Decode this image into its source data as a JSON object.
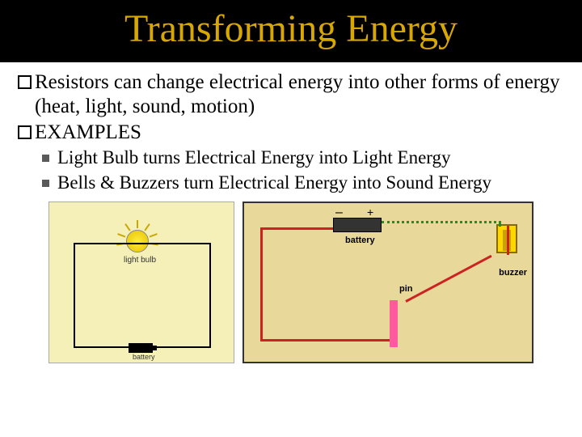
{
  "title": "Transforming Energy",
  "bullets": [
    "Resistors can change electrical energy into other forms of energy (heat, light, sound, motion)",
    "EXAMPLES"
  ],
  "subBullets": [
    "Light Bulb turns Electrical Energy into Light Energy",
    "Bells & Buzzers turn Electrical Energy into Sound Energy"
  ],
  "leftDiagram": {
    "bulbLabel": "light bulb",
    "batteryLabel": "battery",
    "background": "#f5f0b8",
    "bulbColor": "#ffeb3b"
  },
  "rightDiagram": {
    "batteryLabel": "battery",
    "plusLabel": "+",
    "minusLabel": "–",
    "pinLabel": "pin",
    "buzzerLabel": "buzzer",
    "background": "#e8d89a",
    "greenWire": "#2a8a2a",
    "redWire": "#cc2222",
    "pinColor": "#ff5a9e",
    "buzzerColor": "#ffd700"
  },
  "colors": {
    "titleBg": "#000000",
    "titleColor": "#d9a800",
    "textColor": "#000000",
    "subBulletColor": "#5a5a5a"
  },
  "fonts": {
    "titleSize": 48,
    "bulletSize": 25,
    "subBulletSize": 23
  }
}
